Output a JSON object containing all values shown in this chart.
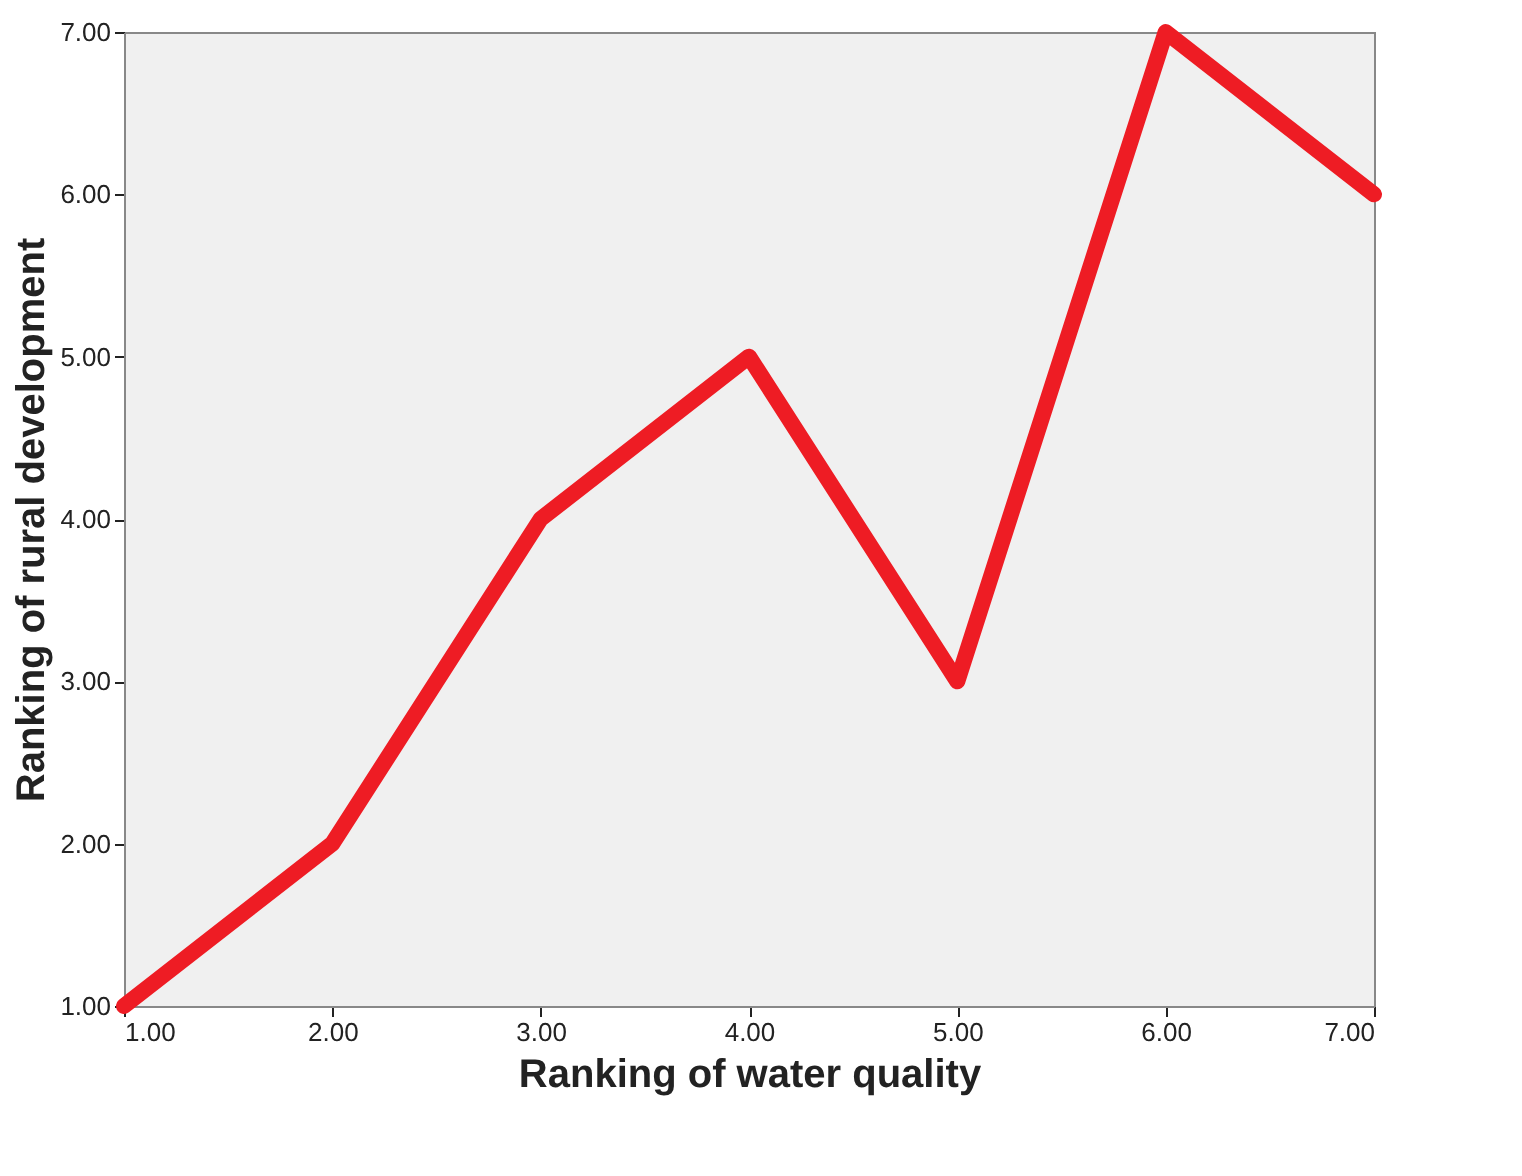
{
  "chart_data": {
    "type": "line",
    "xlabel": "Ranking of water quality",
    "ylabel": "Ranking of rural development",
    "x": [
      1,
      2,
      3,
      4,
      5,
      6,
      7
    ],
    "series": [
      {
        "color": "#ee1c24",
        "values": [
          1,
          2,
          4,
          5,
          3,
          7,
          6
        ]
      }
    ],
    "xlim": [
      1,
      7
    ],
    "ylim": [
      1,
      7
    ],
    "xticks": [
      {
        "value": 1,
        "label": "1.00"
      },
      {
        "value": 2,
        "label": "2.00"
      },
      {
        "value": 3,
        "label": "3.00"
      },
      {
        "value": 4,
        "label": "4.00"
      },
      {
        "value": 5,
        "label": "5.00"
      },
      {
        "value": 6,
        "label": "6.00"
      },
      {
        "value": 7,
        "label": "7.00"
      }
    ],
    "yticks": [
      {
        "value": 1,
        "label": "1.00"
      },
      {
        "value": 2,
        "label": "2.00"
      },
      {
        "value": 3,
        "label": "3.00"
      },
      {
        "value": 4,
        "label": "4.00"
      },
      {
        "value": 5,
        "label": "5.00"
      },
      {
        "value": 6,
        "label": "6.00"
      },
      {
        "value": 7,
        "label": "7.00"
      }
    ],
    "grid": false,
    "marker": "none",
    "line_style": "solid"
  }
}
